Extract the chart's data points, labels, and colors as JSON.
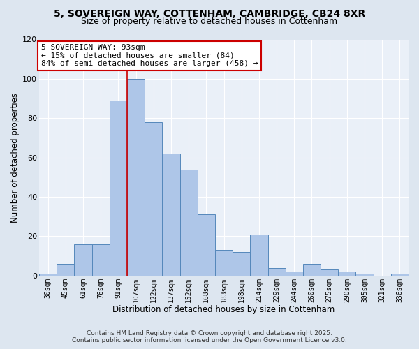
{
  "title1": "5, SOVEREIGN WAY, COTTENHAM, CAMBRIDGE, CB24 8XR",
  "title2": "Size of property relative to detached houses in Cottenham",
  "xlabel": "Distribution of detached houses by size in Cottenham",
  "ylabel": "Number of detached properties",
  "categories": [
    "30sqm",
    "45sqm",
    "61sqm",
    "76sqm",
    "91sqm",
    "107sqm",
    "122sqm",
    "137sqm",
    "152sqm",
    "168sqm",
    "183sqm",
    "198sqm",
    "214sqm",
    "229sqm",
    "244sqm",
    "260sqm",
    "275sqm",
    "290sqm",
    "305sqm",
    "321sqm",
    "336sqm"
  ],
  "values": [
    1,
    6,
    16,
    16,
    89,
    100,
    78,
    62,
    54,
    31,
    13,
    12,
    21,
    4,
    2,
    6,
    3,
    2,
    1,
    0,
    1
  ],
  "bar_color": "#aec6e8",
  "bar_edge_color": "#5588bb",
  "vline_x_index": 4.5,
  "vline_color": "#cc0000",
  "annotation_line1": "5 SOVEREIGN WAY: 93sqm",
  "annotation_line2": "← 15% of detached houses are smaller (84)",
  "annotation_line3": "84% of semi-detached houses are larger (458) →",
  "annotation_box_color": "#ffffff",
  "annotation_box_edge_color": "#cc0000",
  "ylim": [
    0,
    120
  ],
  "yticks": [
    0,
    20,
    40,
    60,
    80,
    100,
    120
  ],
  "footnote1": "Contains HM Land Registry data © Crown copyright and database right 2025.",
  "footnote2": "Contains public sector information licensed under the Open Government Licence v3.0.",
  "bg_color": "#dde6f0",
  "plot_bg_color": "#eaf0f8",
  "title1_fontsize": 10,
  "title2_fontsize": 9,
  "tick_fontsize": 7,
  "xlabel_fontsize": 8.5,
  "ylabel_fontsize": 8.5,
  "annotation_fontsize": 8,
  "footnote_fontsize": 6.5
}
